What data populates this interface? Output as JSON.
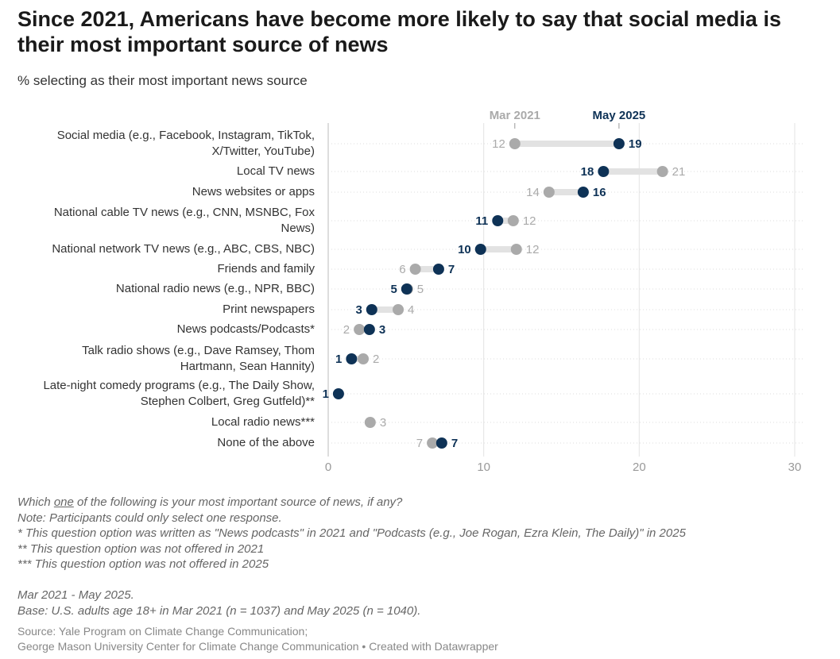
{
  "title": "Since 2021, Americans have become more likely to say that social media is their most important source of news",
  "subtitle": "% selecting as their most important news source",
  "chart_data": {
    "type": "dot-range",
    "title": "Since 2021, Americans have become more likely to say that social media is their most important source of news",
    "ylabel": "% selecting as their most important news source",
    "xlim": [
      0,
      30
    ],
    "x_ticks": [
      "0",
      "10",
      "20",
      "30"
    ],
    "grid": true,
    "series": [
      {
        "name": "Mar 2021",
        "color": "#aaaaaa"
      },
      {
        "name": "May 2025",
        "color": "#0e3256"
      }
    ],
    "categories": [
      {
        "label": "Social media (e.g., Facebook, Instagram, TikTok,\nX/Twitter, YouTube)",
        "mar2021": 12.0,
        "may2025": 18.7,
        "mar_label": "12",
        "may_label": "19"
      },
      {
        "label": "Local TV news",
        "mar2021": 21.5,
        "may2025": 17.7,
        "mar_label": "21",
        "may_label": "18"
      },
      {
        "label": "News websites or apps",
        "mar2021": 14.2,
        "may2025": 16.4,
        "mar_label": "14",
        "may_label": "16"
      },
      {
        "label": "National cable TV news (e.g., CNN, MSNBC, Fox\nNews)",
        "mar2021": 11.9,
        "may2025": 10.9,
        "mar_label": "12",
        "may_label": "11"
      },
      {
        "label": "National network TV news (e.g., ABC, CBS, NBC)",
        "mar2021": 12.1,
        "may2025": 9.8,
        "mar_label": "12",
        "may_label": "10"
      },
      {
        "label": "Friends and family",
        "mar2021": 5.6,
        "may2025": 7.1,
        "mar_label": "6",
        "may_label": "7"
      },
      {
        "label": "National radio news (e.g., NPR, BBC)",
        "mar2021": 5.1,
        "may2025": 5.05,
        "mar_label": "5",
        "may_label": "5"
      },
      {
        "label": "Print newspapers",
        "mar2021": 4.5,
        "may2025": 2.8,
        "mar_label": "4",
        "may_label": "3"
      },
      {
        "label": "News podcasts/Podcasts*",
        "mar2021": 2.0,
        "may2025": 2.65,
        "mar_label": "2",
        "may_label": "3"
      },
      {
        "label": "Talk radio shows (e.g., Dave Ramsey, Thom\nHartmann, Sean Hannity)",
        "mar2021": 2.25,
        "may2025": 1.5,
        "mar_label": "2",
        "may_label": "1"
      },
      {
        "label": "Late-night comedy programs (e.g., The Daily Show,\nStephen Colbert, Greg Gutfeld)**",
        "mar2021": null,
        "may2025": 0.66,
        "mar_label": null,
        "may_label": "1"
      },
      {
        "label": "Local radio news***",
        "mar2021": 2.7,
        "may2025": null,
        "mar_label": "3",
        "may_label": null
      },
      {
        "label": "None of the above",
        "mar2021": 6.7,
        "may2025": 7.3,
        "mar_label": "7",
        "may_label": "7"
      }
    ]
  },
  "notes": {
    "question_pre": "Which ",
    "question_u": "one",
    "question_post": " of the following is your most important source of news, if any?",
    "lines": [
      "Note: Participants could only select one response.",
      "* This question option was written as \"News podcasts\" in 2021 and \"Podcasts (e.g., Joe Rogan, Ezra Klein, The Daily)\" in 2025",
      "** This question option was not offered in 2021",
      "*** This question option was not offered in 2025",
      "",
      "Mar 2021 - May 2025.",
      "Base: U.S. adults age 18+ in Mar 2021 (n = 1037) and May 2025 (n = 1040)."
    ]
  },
  "source": {
    "line1": "Source: Yale Program on Climate Change Communication;",
    "line2": "George Mason University Center for Climate Change Communication • Created with Datawrapper"
  }
}
